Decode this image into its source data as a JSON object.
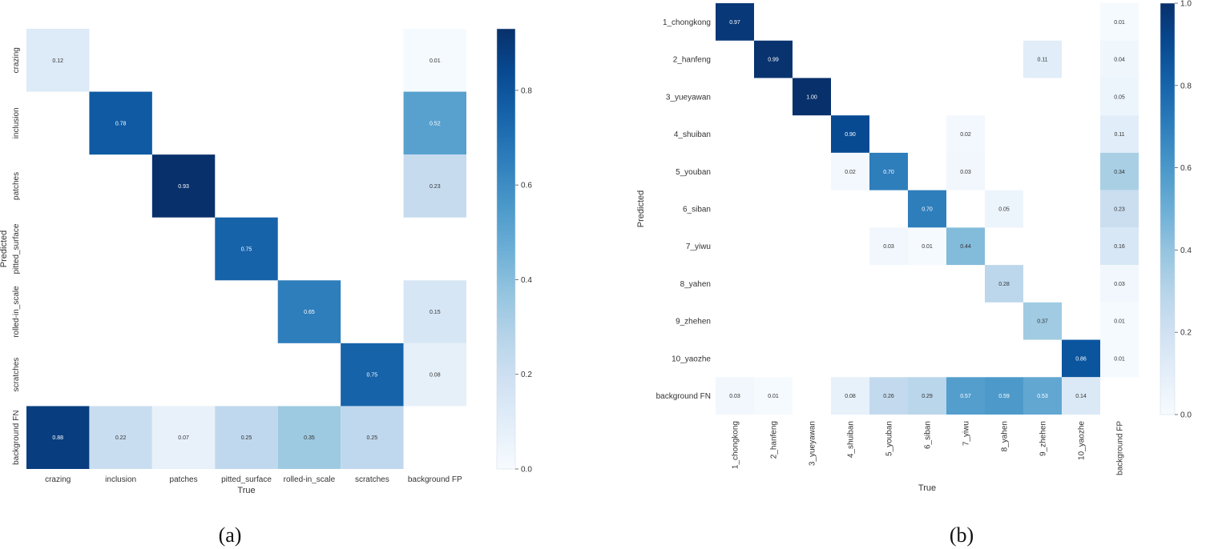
{
  "captions": {
    "a": "(a)",
    "b": "(b)"
  },
  "chart_data": [
    {
      "type": "heatmap",
      "title": "",
      "xlabel": "True",
      "ylabel": "Predicted",
      "x_categories": [
        "crazing",
        "inclusion",
        "patches",
        "pitted_surface",
        "rolled-in_scale",
        "scratches",
        "background FP"
      ],
      "y_categories": [
        "crazing",
        "inclusion",
        "patches",
        "pitted_surface",
        "rolled-in_scale",
        "scratches",
        "background FN"
      ],
      "values": [
        [
          0.12,
          null,
          null,
          null,
          null,
          null,
          0.01
        ],
        [
          null,
          0.78,
          null,
          null,
          null,
          null,
          0.52
        ],
        [
          null,
          null,
          0.93,
          null,
          null,
          null,
          0.23
        ],
        [
          null,
          null,
          null,
          0.75,
          null,
          null,
          null
        ],
        [
          null,
          null,
          null,
          null,
          0.65,
          null,
          0.15
        ],
        [
          null,
          null,
          null,
          null,
          null,
          0.75,
          0.08
        ],
        [
          0.88,
          0.22,
          0.07,
          0.25,
          0.35,
          0.25,
          null
        ]
      ],
      "cell_labels": [
        [
          "0.12",
          null,
          null,
          null,
          null,
          null,
          "0.01"
        ],
        [
          null,
          "0.78",
          null,
          null,
          null,
          null,
          "0.52"
        ],
        [
          null,
          null,
          "0.93",
          null,
          null,
          null,
          "0.23"
        ],
        [
          null,
          null,
          null,
          "0.75",
          null,
          null,
          null
        ],
        [
          null,
          null,
          null,
          null,
          "0.65",
          null,
          "0.15"
        ],
        [
          null,
          null,
          null,
          null,
          null,
          "0.75",
          "0.08"
        ],
        [
          "0.88",
          "0.22",
          "0.07",
          "0.25",
          "0.35",
          "0.25",
          null
        ]
      ],
      "colorbar": {
        "vmin": 0,
        "vmax": 0.93,
        "ticks": [
          0.0,
          0.2,
          0.4,
          0.6,
          0.8
        ],
        "tick_labels": [
          "0.0",
          "0.2",
          "0.4",
          "0.6",
          "0.8"
        ]
      }
    },
    {
      "type": "heatmap",
      "title": "",
      "xlabel": "True",
      "ylabel": "Predicted",
      "x_categories": [
        "1_chongkong",
        "2_hanfeng",
        "3_yueyawan",
        "4_shuiban",
        "5_youban",
        "6_siban",
        "7_yiwu",
        "8_yahen",
        "9_zhehen",
        "10_yaozhe",
        "background FP"
      ],
      "y_categories": [
        "1_chongkong",
        "2_hanfeng",
        "3_yueyawan",
        "4_shuiban",
        "5_youban",
        "6_siban",
        "7_yiwu",
        "8_yahen",
        "9_zhehen",
        "10_yaozhe",
        "background FN"
      ],
      "values": [
        [
          0.97,
          null,
          null,
          null,
          null,
          null,
          null,
          null,
          null,
          null,
          0.01
        ],
        [
          null,
          0.99,
          null,
          null,
          null,
          null,
          null,
          null,
          0.11,
          null,
          0.04
        ],
        [
          null,
          null,
          1.0,
          null,
          null,
          null,
          null,
          null,
          null,
          null,
          0.05
        ],
        [
          null,
          null,
          null,
          0.9,
          null,
          null,
          0.02,
          null,
          null,
          null,
          0.11
        ],
        [
          null,
          null,
          null,
          0.02,
          0.7,
          null,
          0.03,
          null,
          null,
          null,
          0.34
        ],
        [
          null,
          null,
          null,
          null,
          null,
          0.7,
          null,
          0.05,
          null,
          null,
          0.23
        ],
        [
          null,
          null,
          null,
          null,
          0.03,
          0.01,
          0.44,
          null,
          null,
          null,
          0.16
        ],
        [
          null,
          null,
          null,
          null,
          null,
          null,
          null,
          0.28,
          null,
          null,
          0.03
        ],
        [
          null,
          null,
          null,
          null,
          null,
          null,
          null,
          null,
          0.37,
          null,
          0.01
        ],
        [
          null,
          null,
          null,
          null,
          null,
          null,
          null,
          null,
          null,
          0.86,
          0.01
        ],
        [
          0.03,
          0.01,
          null,
          0.08,
          0.26,
          0.29,
          0.57,
          0.59,
          0.53,
          0.14,
          null
        ]
      ],
      "cell_labels": [
        [
          "0.97",
          null,
          null,
          null,
          null,
          null,
          null,
          null,
          null,
          null,
          "0.01"
        ],
        [
          null,
          "0.99",
          null,
          null,
          null,
          null,
          null,
          null,
          "0.11",
          null,
          "0.04"
        ],
        [
          null,
          null,
          "1.00",
          null,
          null,
          null,
          null,
          null,
          null,
          null,
          "0.05"
        ],
        [
          null,
          null,
          null,
          "0.90",
          null,
          null,
          "0.02",
          null,
          null,
          null,
          "0.11"
        ],
        [
          null,
          null,
          null,
          "0.02",
          "0.70",
          null,
          "0.03",
          null,
          null,
          null,
          "0.34"
        ],
        [
          null,
          null,
          null,
          null,
          null,
          "0.70",
          null,
          "0.05",
          null,
          null,
          "0.23"
        ],
        [
          null,
          null,
          null,
          null,
          "0.03",
          "0.01",
          "0.44",
          null,
          null,
          null,
          "0.16"
        ],
        [
          null,
          null,
          null,
          null,
          null,
          null,
          null,
          "0.28",
          null,
          null,
          "0.03"
        ],
        [
          null,
          null,
          null,
          null,
          null,
          null,
          null,
          null,
          "0.37",
          null,
          "0.01"
        ],
        [
          null,
          null,
          null,
          null,
          null,
          null,
          null,
          null,
          null,
          "0.86",
          "0.01"
        ],
        [
          "0.03",
          "0.01",
          null,
          "0.08",
          "0.26",
          "0.29",
          "0.57",
          "0.59",
          "0.53",
          "0.14",
          null
        ]
      ],
      "colorbar": {
        "vmin": 0,
        "vmax": 1.0,
        "ticks": [
          0.0,
          0.2,
          0.4,
          0.6,
          0.8,
          1.0
        ],
        "tick_labels": [
          "0.0",
          "0.2",
          "0.4",
          "0.6",
          "0.8",
          "1.0"
        ]
      }
    }
  ]
}
